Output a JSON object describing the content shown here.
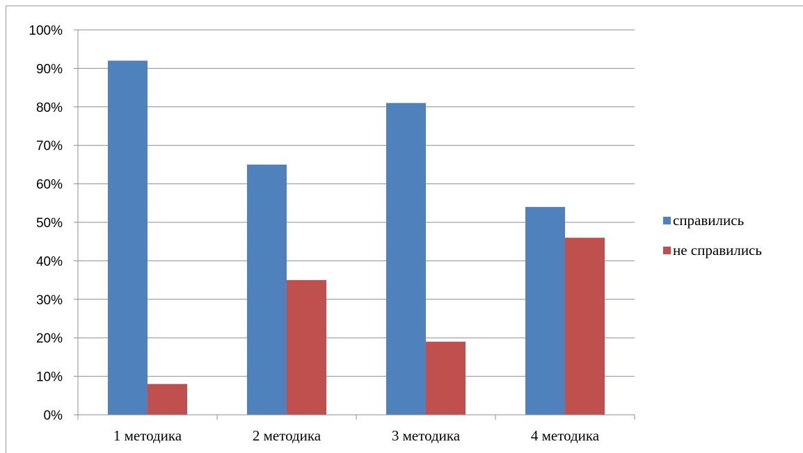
{
  "chart_data": {
    "type": "bar",
    "categories": [
      "1 методика",
      "2 методика",
      "3 методика",
      "4 методика"
    ],
    "series": [
      {
        "name": "справились",
        "values": [
          92,
          65,
          81,
          54
        ],
        "color": "#4F81BD"
      },
      {
        "name": "не справились",
        "values": [
          8,
          35,
          19,
          46
        ],
        "color": "#C0504D"
      }
    ],
    "ylim": [
      0,
      100
    ],
    "yticks": [
      "0%",
      "10%",
      "20%",
      "30%",
      "40%",
      "50%",
      "60%",
      "70%",
      "80%",
      "90%",
      "100%"
    ],
    "grid": true,
    "legend": "right"
  }
}
